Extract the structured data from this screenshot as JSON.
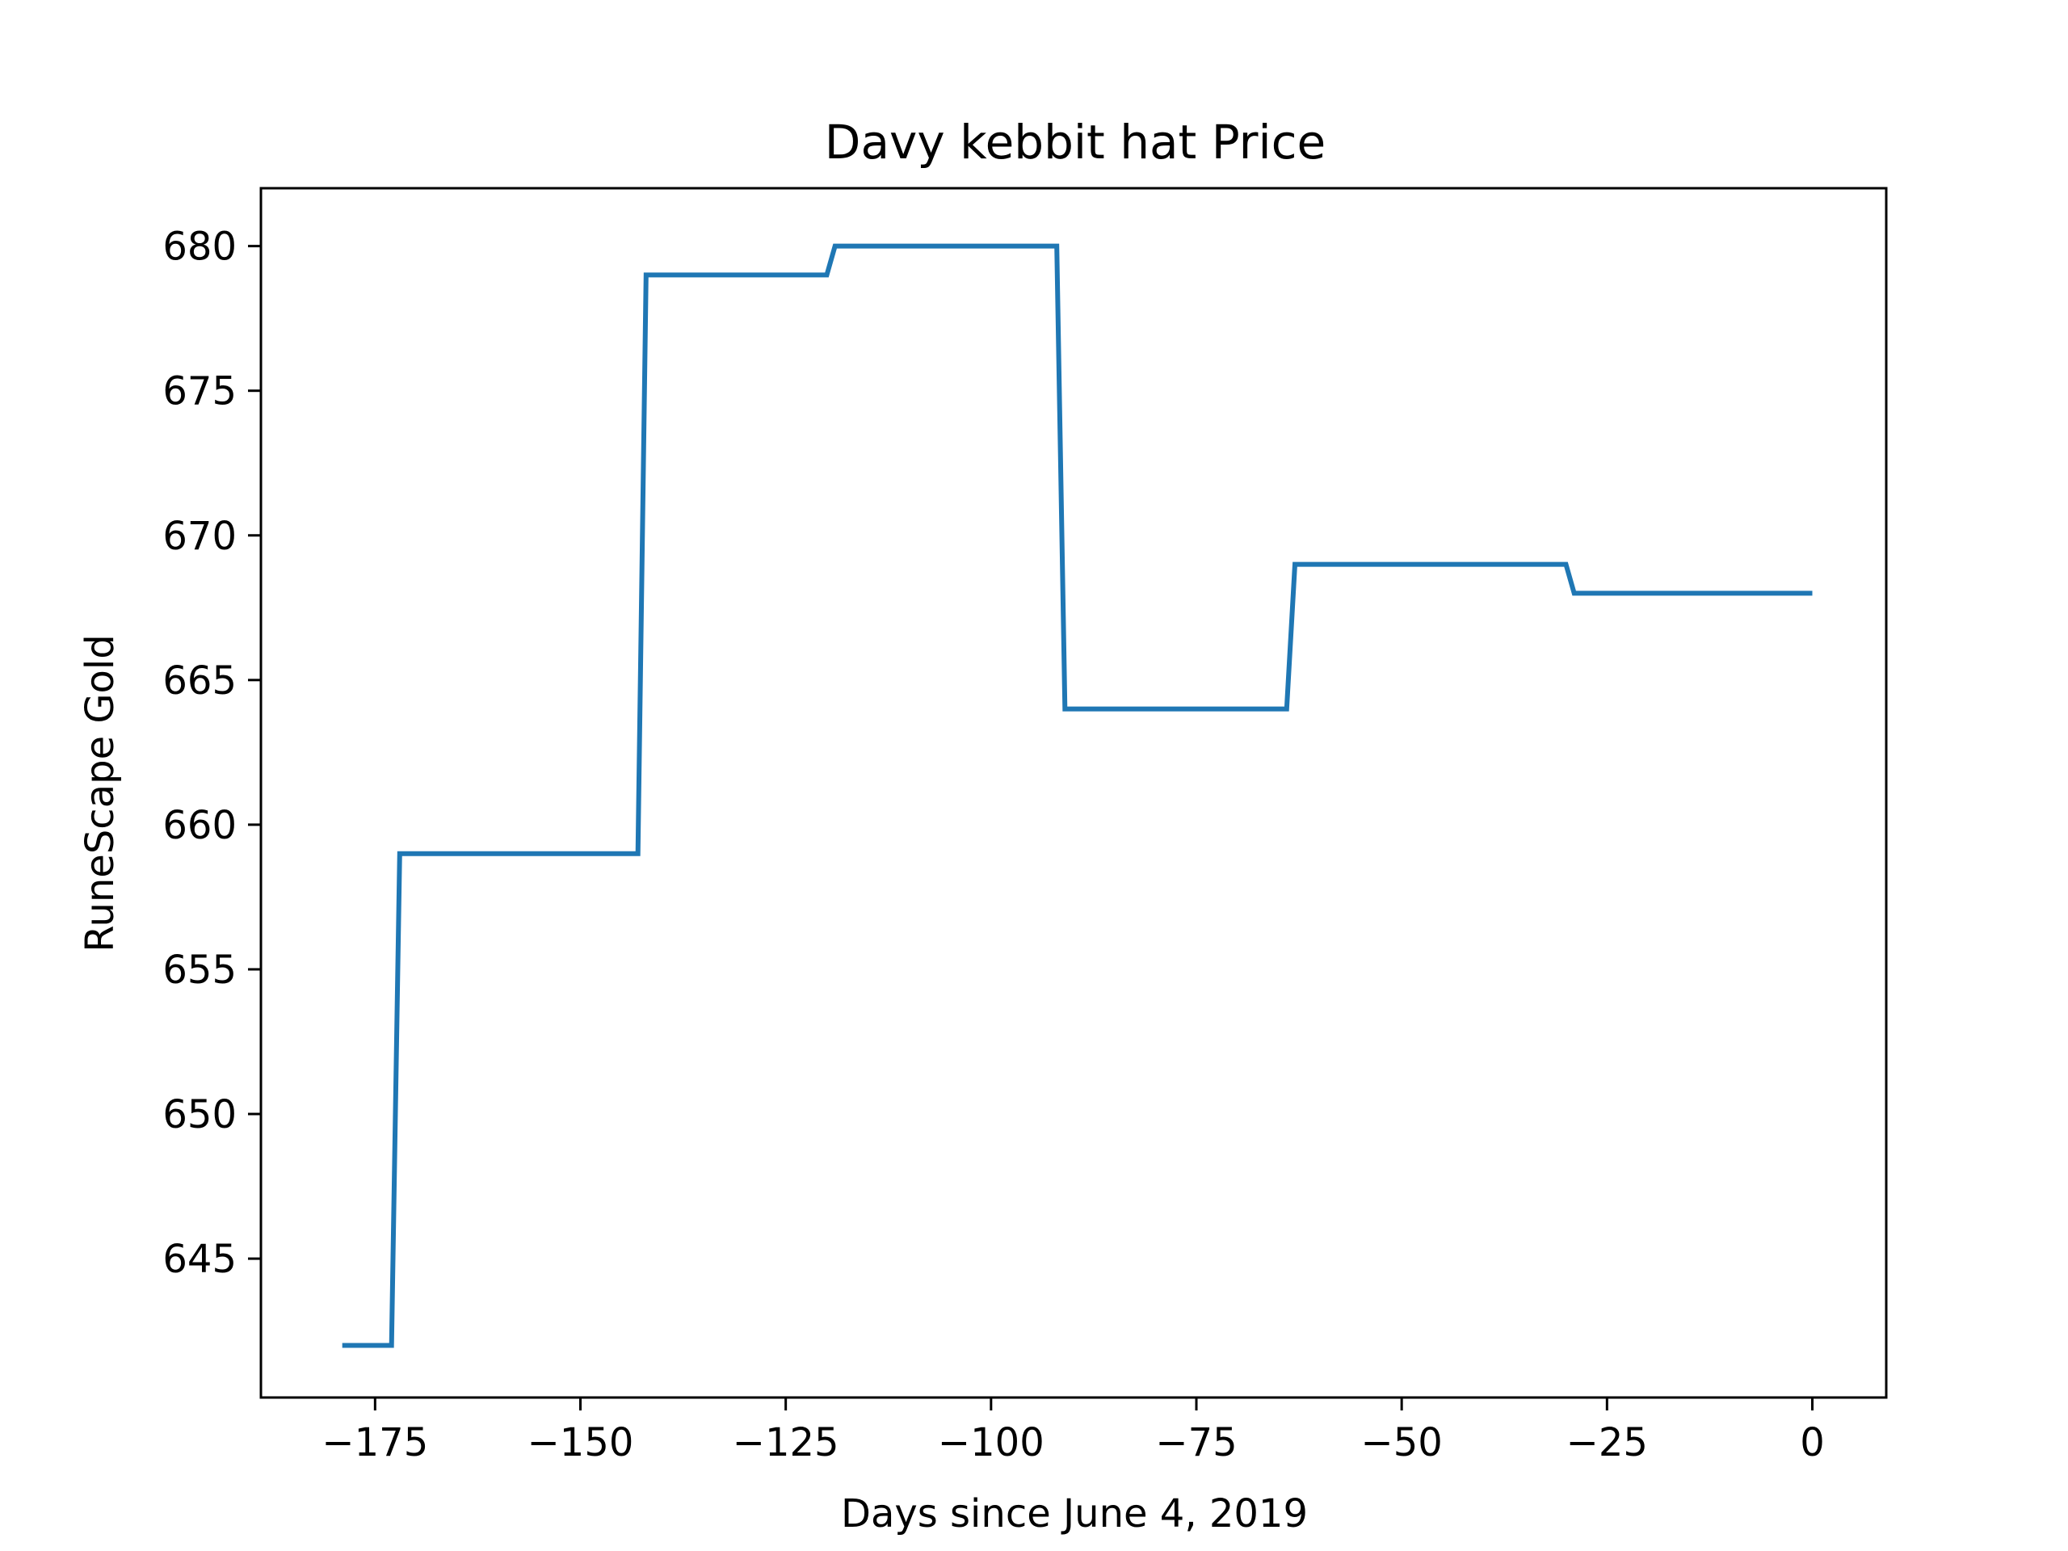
{
  "chart_data": {
    "type": "line",
    "title": "Davy kebbit hat Price",
    "xlabel": "Days since June 4, 2019",
    "ylabel": "RuneScape Gold",
    "xlim": [
      -188.9,
      9
    ],
    "ylim": [
      640.2,
      682
    ],
    "xticks": [
      -175,
      -150,
      -125,
      -100,
      -75,
      -50,
      -25,
      0
    ],
    "xtick_labels": [
      "−175",
      "−150",
      "−125",
      "−100",
      "−75",
      "−50",
      "−25",
      "0"
    ],
    "yticks": [
      645,
      650,
      655,
      660,
      665,
      670,
      675,
      680
    ],
    "ytick_labels": [
      "645",
      "650",
      "655",
      "660",
      "665",
      "670",
      "675",
      "680"
    ],
    "grid": false,
    "line_color": "#1f77b4",
    "series": [
      {
        "x": [
          -179,
          -173,
          -172,
          -143,
          -142,
          -120,
          -119,
          -92,
          -91,
          -64,
          -63,
          -30,
          -29,
          0
        ],
        "y": [
          642,
          642,
          659,
          659,
          679,
          679,
          680,
          680,
          664,
          664,
          669,
          669,
          668,
          668
        ]
      }
    ]
  }
}
